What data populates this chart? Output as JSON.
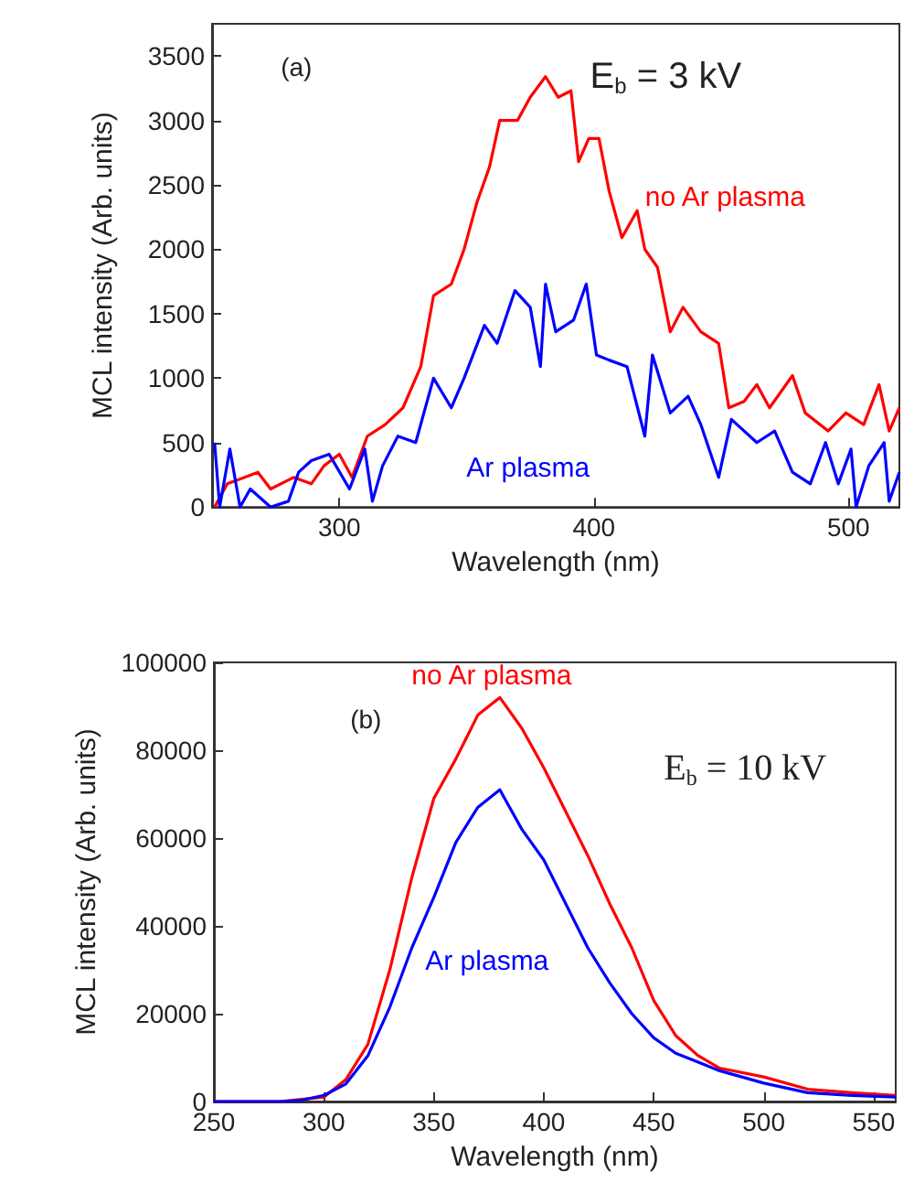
{
  "chart_data": [
    {
      "type": "line",
      "xlabel": "Wavelength (nm)",
      "ylabel": "MCL intensity (Arb. units)",
      "annotations": [
        "(a)",
        "E$_{b}$ = 3 kV"
      ],
      "xlim": [
        250,
        520
      ],
      "xticks": [
        300,
        400,
        500
      ],
      "ylim": [
        0,
        3750
      ],
      "yticks": [
        0,
        500,
        1000,
        1500,
        2000,
        2500,
        3000,
        3500
      ],
      "legend": false,
      "grid": false,
      "marker": "none",
      "line_style": "solid",
      "series": [
        {
          "name": "no Ar plasma",
          "color": "#ff0000",
          "x": [
            251,
            256,
            268,
            273,
            282,
            289,
            294,
            300,
            305,
            311,
            318,
            325,
            332,
            337,
            344,
            349,
            354,
            359,
            363,
            370,
            375,
            381,
            386,
            391,
            394,
            398,
            402,
            406,
            411,
            417,
            420,
            425,
            430,
            435,
            442,
            449,
            453,
            459,
            464,
            469,
            478,
            483,
            492,
            499,
            506,
            512,
            516,
            520
          ],
          "values": [
            0,
            180,
            270,
            140,
            230,
            180,
            320,
            410,
            230,
            550,
            640,
            770,
            1090,
            1640,
            1730,
            2000,
            2360,
            2640,
            3000,
            3000,
            3180,
            3340,
            3180,
            3230,
            2680,
            2860,
            2860,
            2450,
            2090,
            2300,
            2000,
            1860,
            1360,
            1550,
            1360,
            1270,
            770,
            820,
            950,
            770,
            1020,
            730,
            590,
            730,
            640,
            950,
            590,
            770
          ]
        },
        {
          "name": "Ar plasma",
          "color": "#0000ff",
          "x": [
            251,
            253,
            257,
            261,
            265,
            273,
            280,
            284,
            289,
            296,
            304,
            310,
            313,
            317,
            323,
            330,
            337,
            344,
            349,
            357,
            362,
            369,
            375,
            379,
            381,
            385,
            392,
            397,
            401,
            406,
            413,
            420,
            423,
            430,
            437,
            442,
            449,
            454,
            464,
            471,
            478,
            485,
            491,
            496,
            501,
            503,
            508,
            514,
            516,
            520
          ],
          "values": [
            500,
            0,
            450,
            0,
            140,
            0,
            45,
            270,
            360,
            410,
            140,
            450,
            45,
            320,
            550,
            500,
            1000,
            770,
            1000,
            1410,
            1270,
            1680,
            1550,
            1090,
            1730,
            1360,
            1450,
            1730,
            1180,
            1140,
            1090,
            550,
            1180,
            730,
            860,
            640,
            230,
            680,
            500,
            590,
            270,
            180,
            500,
            180,
            450,
            0,
            320,
            500,
            45,
            270
          ]
        }
      ]
    },
    {
      "type": "line",
      "xlabel": "Wavelength (nm)",
      "ylabel": "MCL intensity (Arb. units)",
      "annotations": [
        "(b)",
        "E$_{b}$ = 10 kV"
      ],
      "xlim": [
        250,
        560
      ],
      "xticks": [
        250,
        300,
        350,
        400,
        450,
        500,
        550
      ],
      "ylim": [
        0,
        100000
      ],
      "yticks": [
        0,
        20000,
        40000,
        60000,
        80000,
        100000
      ],
      "legend": false,
      "grid": false,
      "marker": "none",
      "line_style": "solid",
      "series": [
        {
          "name": "no Ar plasma",
          "color": "#ff0000",
          "x": [
            250,
            280,
            290,
            300,
            310,
            320,
            330,
            340,
            350,
            360,
            370,
            380,
            390,
            400,
            410,
            420,
            430,
            440,
            450,
            460,
            470,
            480,
            500,
            520,
            540,
            560
          ],
          "values": [
            0,
            0,
            500,
            1000,
            5000,
            13000,
            30000,
            51000,
            69000,
            78000,
            88000,
            92000,
            85000,
            76000,
            66000,
            56000,
            45000,
            35000,
            23000,
            15000,
            10500,
            7600,
            5600,
            2800,
            2000,
            1400
          ]
        },
        {
          "name": "Ar plasma",
          "color": "#0000ff",
          "x": [
            250,
            280,
            290,
            300,
            310,
            320,
            330,
            340,
            350,
            360,
            370,
            380,
            390,
            400,
            410,
            420,
            430,
            440,
            450,
            460,
            470,
            480,
            500,
            520,
            540,
            560
          ],
          "values": [
            0,
            0,
            300,
            1400,
            4000,
            10400,
            21500,
            35000,
            46500,
            59000,
            67000,
            71000,
            62000,
            55000,
            45000,
            35000,
            27000,
            20000,
            14500,
            11000,
            9000,
            7000,
            4200,
            2000,
            1400,
            1000
          ]
        }
      ]
    }
  ]
}
